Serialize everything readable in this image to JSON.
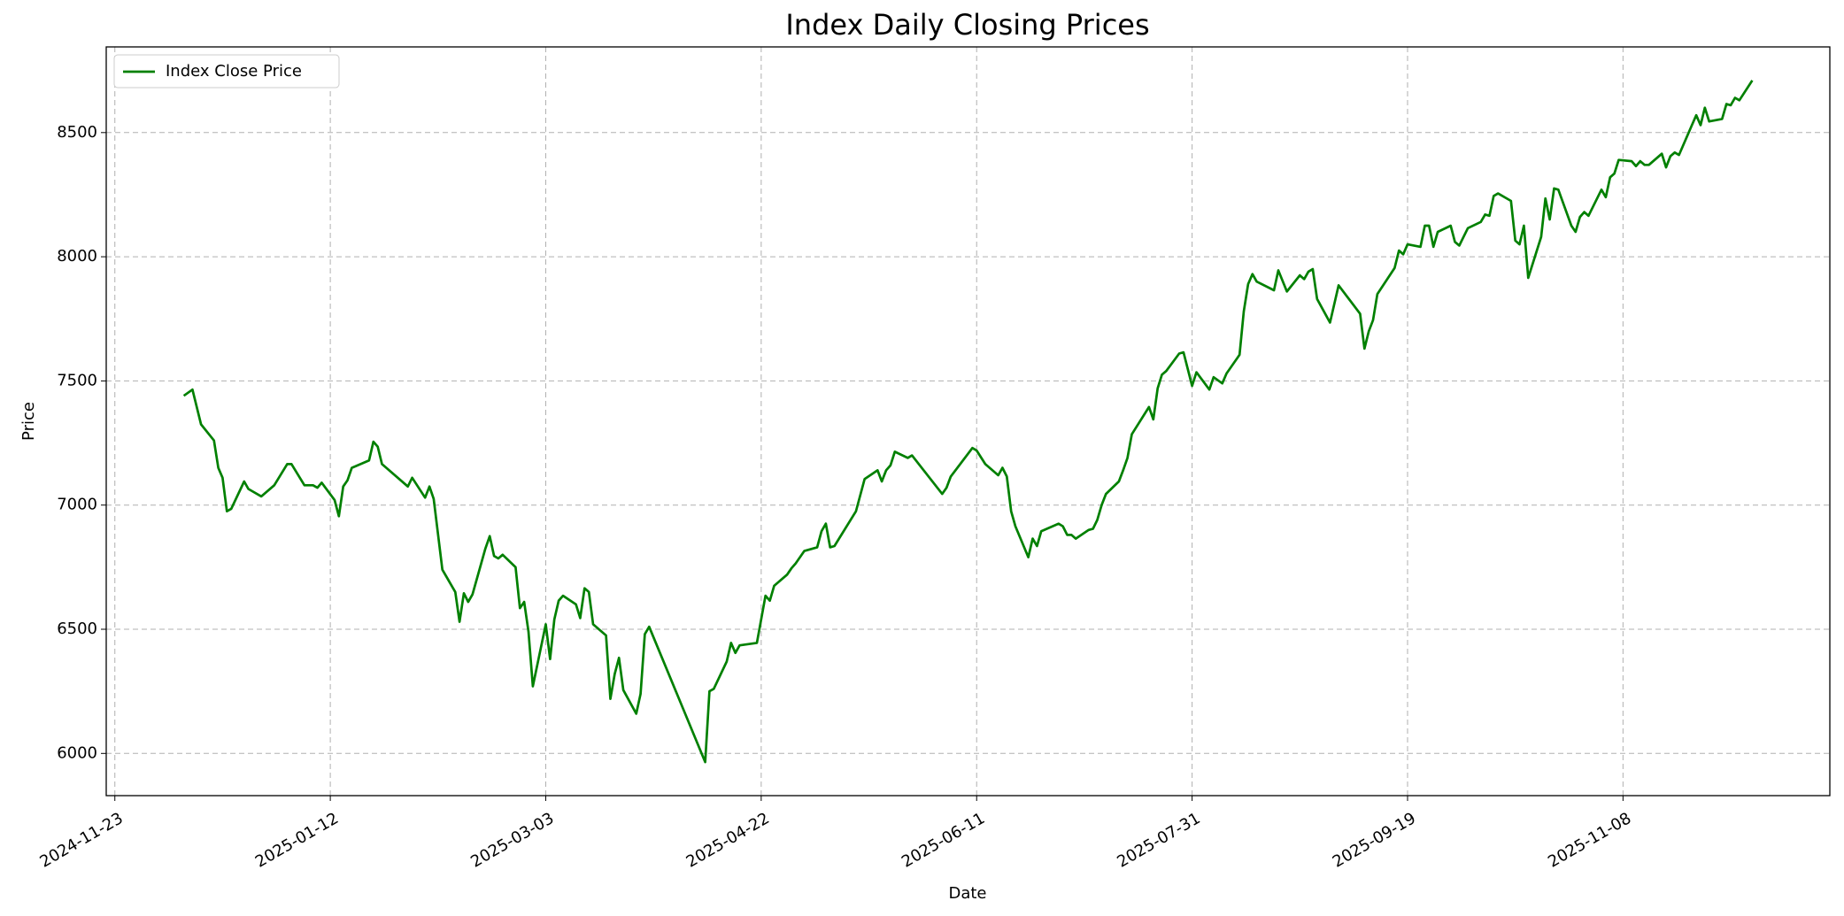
{
  "chart_data": {
    "type": "line",
    "title": "Index Daily Closing Prices",
    "x_label": "Date",
    "y_label": "Price",
    "x": [
      "2024-12-09",
      "2024-12-11",
      "2024-12-13",
      "2024-12-16",
      "2024-12-17",
      "2024-12-18",
      "2024-12-19",
      "2024-12-20",
      "2024-12-23",
      "2024-12-24",
      "2024-12-27",
      "2024-12-30",
      "2025-01-02",
      "2025-01-03",
      "2025-01-06",
      "2025-01-08",
      "2025-01-09",
      "2025-01-10",
      "2025-01-13",
      "2025-01-14",
      "2025-01-15",
      "2025-01-16",
      "2025-01-17",
      "2025-01-21",
      "2025-01-22",
      "2025-01-23",
      "2025-01-24",
      "2025-01-30",
      "2025-01-31",
      "2025-02-03",
      "2025-02-04",
      "2025-02-05",
      "2025-02-07",
      "2025-02-10",
      "2025-02-11",
      "2025-02-12",
      "2025-02-13",
      "2025-02-14",
      "2025-02-17",
      "2025-02-18",
      "2025-02-19",
      "2025-02-20",
      "2025-02-21",
      "2025-02-24",
      "2025-02-25",
      "2025-02-26",
      "2025-02-27",
      "2025-02-28",
      "2025-03-03",
      "2025-03-04",
      "2025-03-05",
      "2025-03-06",
      "2025-03-07",
      "2025-03-10",
      "2025-03-11",
      "2025-03-12",
      "2025-03-13",
      "2025-03-14",
      "2025-03-17",
      "2025-03-18",
      "2025-03-19",
      "2025-03-20",
      "2025-03-21",
      "2025-03-24",
      "2025-03-25",
      "2025-03-26",
      "2025-03-27",
      "2025-04-09",
      "2025-04-10",
      "2025-04-11",
      "2025-04-14",
      "2025-04-15",
      "2025-04-16",
      "2025-04-17",
      "2025-04-21",
      "2025-04-23",
      "2025-04-24",
      "2025-04-25",
      "2025-04-28",
      "2025-04-29",
      "2025-04-30",
      "2025-05-02",
      "2025-05-05",
      "2025-05-06",
      "2025-05-07",
      "2025-05-08",
      "2025-05-09",
      "2025-05-14",
      "2025-05-16",
      "2025-05-19",
      "2025-05-20",
      "2025-05-21",
      "2025-05-22",
      "2025-05-23",
      "2025-05-26",
      "2025-05-27",
      "2025-06-03",
      "2025-06-04",
      "2025-06-05",
      "2025-06-10",
      "2025-06-11",
      "2025-06-13",
      "2025-06-16",
      "2025-06-17",
      "2025-06-18",
      "2025-06-19",
      "2025-06-20",
      "2025-06-23",
      "2025-06-24",
      "2025-06-25",
      "2025-06-26",
      "2025-06-30",
      "2025-07-01",
      "2025-07-02",
      "2025-07-03",
      "2025-07-04",
      "2025-07-07",
      "2025-07-08",
      "2025-07-09",
      "2025-07-10",
      "2025-07-11",
      "2025-07-14",
      "2025-07-15",
      "2025-07-16",
      "2025-07-17",
      "2025-07-21",
      "2025-07-22",
      "2025-07-23",
      "2025-07-24",
      "2025-07-25",
      "2025-07-28",
      "2025-07-29",
      "2025-07-31",
      "2025-08-01",
      "2025-08-04",
      "2025-08-05",
      "2025-08-07",
      "2025-08-08",
      "2025-08-11",
      "2025-08-12",
      "2025-08-13",
      "2025-08-14",
      "2025-08-15",
      "2025-08-19",
      "2025-08-20",
      "2025-08-22",
      "2025-08-25",
      "2025-08-26",
      "2025-08-27",
      "2025-08-28",
      "2025-08-29",
      "2025-09-01",
      "2025-09-03",
      "2025-09-08",
      "2025-09-09",
      "2025-09-10",
      "2025-09-11",
      "2025-09-12",
      "2025-09-16",
      "2025-09-17",
      "2025-09-18",
      "2025-09-19",
      "2025-09-22",
      "2025-09-23",
      "2025-09-24",
      "2025-09-25",
      "2025-09-26",
      "2025-09-29",
      "2025-09-30",
      "2025-10-01",
      "2025-10-03",
      "2025-10-06",
      "2025-10-07",
      "2025-10-08",
      "2025-10-09",
      "2025-10-10",
      "2025-10-13",
      "2025-10-14",
      "2025-10-15",
      "2025-10-16",
      "2025-10-17",
      "2025-10-20",
      "2025-10-21",
      "2025-10-22",
      "2025-10-23",
      "2025-10-24",
      "2025-10-27",
      "2025-10-28",
      "2025-10-29",
      "2025-10-30",
      "2025-10-31",
      "2025-11-03",
      "2025-11-04",
      "2025-11-05",
      "2025-11-06",
      "2025-11-07",
      "2025-11-10",
      "2025-11-11",
      "2025-11-12",
      "2025-11-13",
      "2025-11-14",
      "2025-11-17",
      "2025-11-18",
      "2025-11-19",
      "2025-11-20",
      "2025-11-21",
      "2025-11-24",
      "2025-11-25",
      "2025-11-26",
      "2025-11-27",
      "2025-11-28",
      "2025-12-01",
      "2025-12-02",
      "2025-12-03",
      "2025-12-04",
      "2025-12-05",
      "2025-12-08"
    ],
    "series": [
      {
        "name": "Index Close Price",
        "color": "#008000",
        "values": [
          7440,
          7465,
          7325,
          7260,
          7150,
          7110,
          6975,
          6985,
          7095,
          7065,
          7035,
          7080,
          7165,
          7165,
          7080,
          7080,
          7070,
          7090,
          7020,
          6955,
          7075,
          7100,
          7150,
          7180,
          7255,
          7235,
          7165,
          7075,
          7110,
          7030,
          7075,
          7025,
          6740,
          6650,
          6530,
          6645,
          6610,
          6640,
          6825,
          6875,
          6795,
          6785,
          6800,
          6750,
          6585,
          6610,
          6490,
          6270,
          6520,
          6380,
          6540,
          6615,
          6635,
          6600,
          6545,
          6665,
          6650,
          6520,
          6475,
          6220,
          6320,
          6385,
          6255,
          6160,
          6240,
          6480,
          6510,
          5965,
          6250,
          6260,
          6370,
          6445,
          6405,
          6435,
          6445,
          6635,
          6615,
          6675,
          6720,
          6745,
          6765,
          6815,
          6830,
          6895,
          6925,
          6830,
          6835,
          6975,
          7105,
          7140,
          7095,
          7140,
          7160,
          7215,
          7190,
          7200,
          7045,
          7070,
          7115,
          7230,
          7220,
          7165,
          7120,
          7150,
          7115,
          6975,
          6915,
          6790,
          6865,
          6835,
          6895,
          6925,
          6915,
          6880,
          6880,
          6865,
          6900,
          6905,
          6940,
          7000,
          7045,
          7095,
          7140,
          7190,
          7285,
          7395,
          7345,
          7470,
          7525,
          7540,
          7610,
          7615,
          7480,
          7535,
          7465,
          7515,
          7490,
          7530,
          7605,
          7780,
          7890,
          7930,
          7900,
          7865,
          7945,
          7860,
          7925,
          7910,
          7940,
          7950,
          7830,
          7735,
          7885,
          7770,
          7630,
          7700,
          7745,
          7850,
          7955,
          8025,
          8010,
          8050,
          8040,
          8125,
          8125,
          8040,
          8100,
          8125,
          8060,
          8045,
          8115,
          8140,
          8170,
          8165,
          8245,
          8255,
          8225,
          8065,
          8050,
          8125,
          7915,
          8080,
          8235,
          8150,
          8275,
          8270,
          8125,
          8100,
          8160,
          8180,
          8165,
          8270,
          8240,
          8320,
          8335,
          8390,
          8385,
          8365,
          8385,
          8370,
          8370,
          8415,
          8360,
          8405,
          8420,
          8410,
          8530,
          8570,
          8530,
          8600,
          8545,
          8555,
          8615,
          8610,
          8640,
          8630,
          8710
        ]
      }
    ],
    "xlim": [
      "2024-11-21",
      "2025-12-26"
    ],
    "xticks": [
      "2024-11-23",
      "2025-01-12",
      "2025-03-03",
      "2025-04-22",
      "2025-06-11",
      "2025-07-31",
      "2025-09-19",
      "2025-11-08"
    ],
    "ylim": [
      5830,
      8845
    ],
    "yticks": [
      6000,
      6500,
      7000,
      7500,
      8000,
      8500
    ],
    "grid": true,
    "legend": "upper left"
  }
}
